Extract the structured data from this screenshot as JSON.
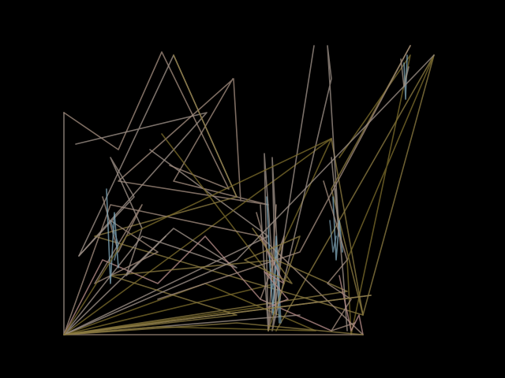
{
  "background_color": "#000000",
  "stroke_colors": [
    "#9c8f86",
    "#a08a7c",
    "#7a6a2a",
    "#8a7a40",
    "#6f8fa0",
    "#7fa6b8",
    "#b48a86"
  ]
}
